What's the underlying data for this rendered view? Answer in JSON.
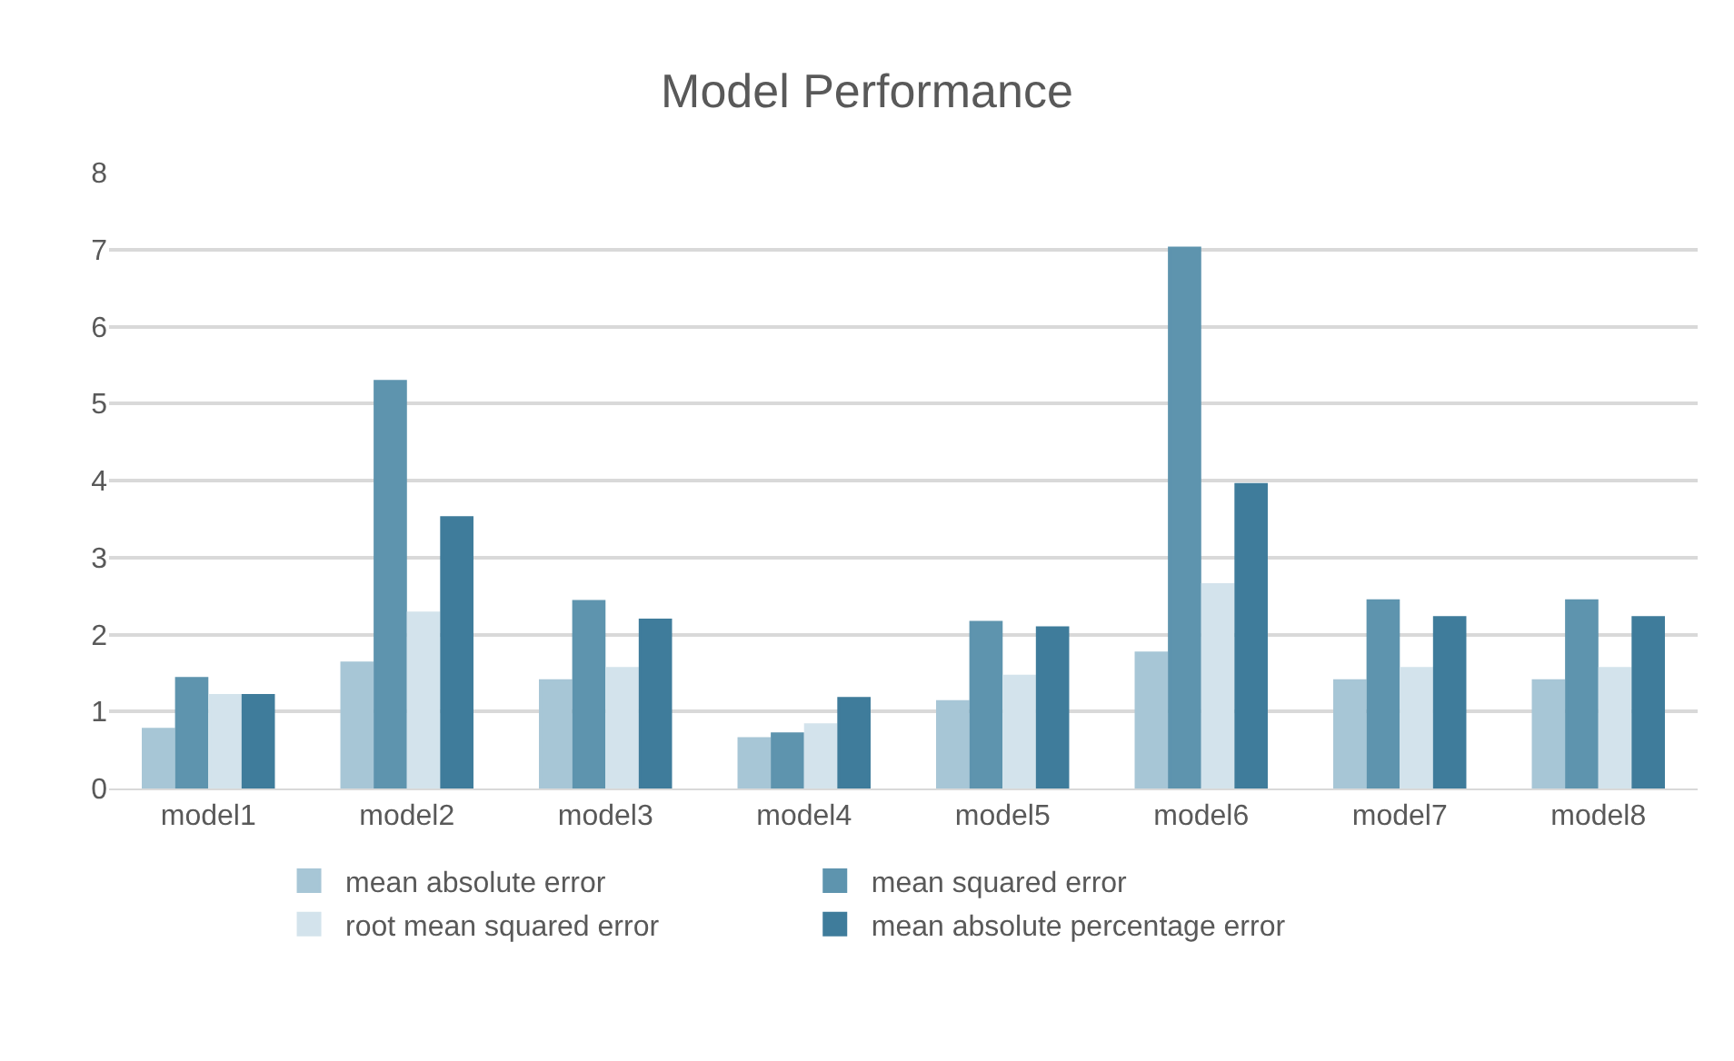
{
  "chart_data": {
    "type": "bar",
    "title": "Model Performance",
    "categories": [
      "model1",
      "model2",
      "model3",
      "model4",
      "model5",
      "model6",
      "model7",
      "model8"
    ],
    "series": [
      {
        "name": "mean absolute error",
        "color": "#a7c6d6",
        "values": [
          0.77,
          1.63,
          1.4,
          0.65,
          1.13,
          1.76,
          1.4,
          1.4
        ]
      },
      {
        "name": "mean squared error",
        "color": "#5e94ae",
        "values": [
          1.43,
          5.29,
          2.43,
          0.71,
          2.16,
          7.02,
          2.44,
          2.44
        ]
      },
      {
        "name": "root mean squared error",
        "color": "#d3e3ec",
        "values": [
          1.21,
          2.28,
          1.56,
          0.83,
          1.46,
          2.65,
          1.56,
          1.56
        ]
      },
      {
        "name": "mean absolute percentage error",
        "color": "#3f7c9b",
        "values": [
          1.21,
          3.52,
          2.19,
          1.17,
          2.09,
          3.95,
          2.22,
          2.22
        ]
      }
    ],
    "ylim": [
      0,
      8
    ],
    "yticks": [
      0,
      1,
      2,
      3,
      4,
      5,
      6,
      7,
      8
    ],
    "grid": "y",
    "legend": "bottom"
  }
}
